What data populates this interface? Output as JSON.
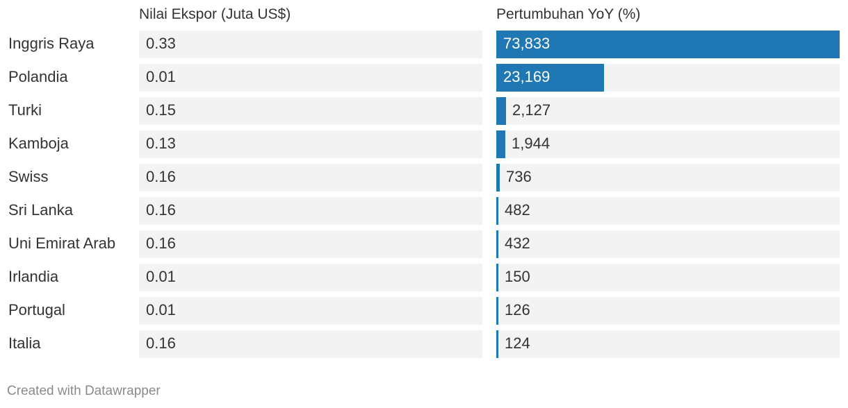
{
  "chart_data": {
    "type": "table",
    "columns": [
      "",
      "Nilai Ekspor (Juta US$)",
      "Pertumbuhan YoY (%)"
    ],
    "rows": [
      {
        "country": "Inggris Raya",
        "ekspor": "0.33",
        "growth": "73,833",
        "growth_value": 73833
      },
      {
        "country": "Polandia",
        "ekspor": "0.01",
        "growth": "23,169",
        "growth_value": 23169
      },
      {
        "country": "Turki",
        "ekspor": "0.15",
        "growth": "2,127",
        "growth_value": 2127
      },
      {
        "country": "Kamboja",
        "ekspor": "0.13",
        "growth": "1,944",
        "growth_value": 1944
      },
      {
        "country": "Swiss",
        "ekspor": "0.16",
        "growth": "736",
        "growth_value": 736
      },
      {
        "country": "Sri Lanka",
        "ekspor": "0.16",
        "growth": "482",
        "growth_value": 482
      },
      {
        "country": "Uni Emirat Arab",
        "ekspor": "0.16",
        "growth": "432",
        "growth_value": 432
      },
      {
        "country": "Irlandia",
        "ekspor": "0.01",
        "growth": "150",
        "growth_value": 150
      },
      {
        "country": "Portugal",
        "ekspor": "0.01",
        "growth": "126",
        "growth_value": 126
      },
      {
        "country": "Italia",
        "ekspor": "0.16",
        "growth": "124",
        "growth_value": 124
      }
    ],
    "growth_max": 73833,
    "bar_color": "#1f77b4"
  },
  "footer": "Created with Datawrapper"
}
